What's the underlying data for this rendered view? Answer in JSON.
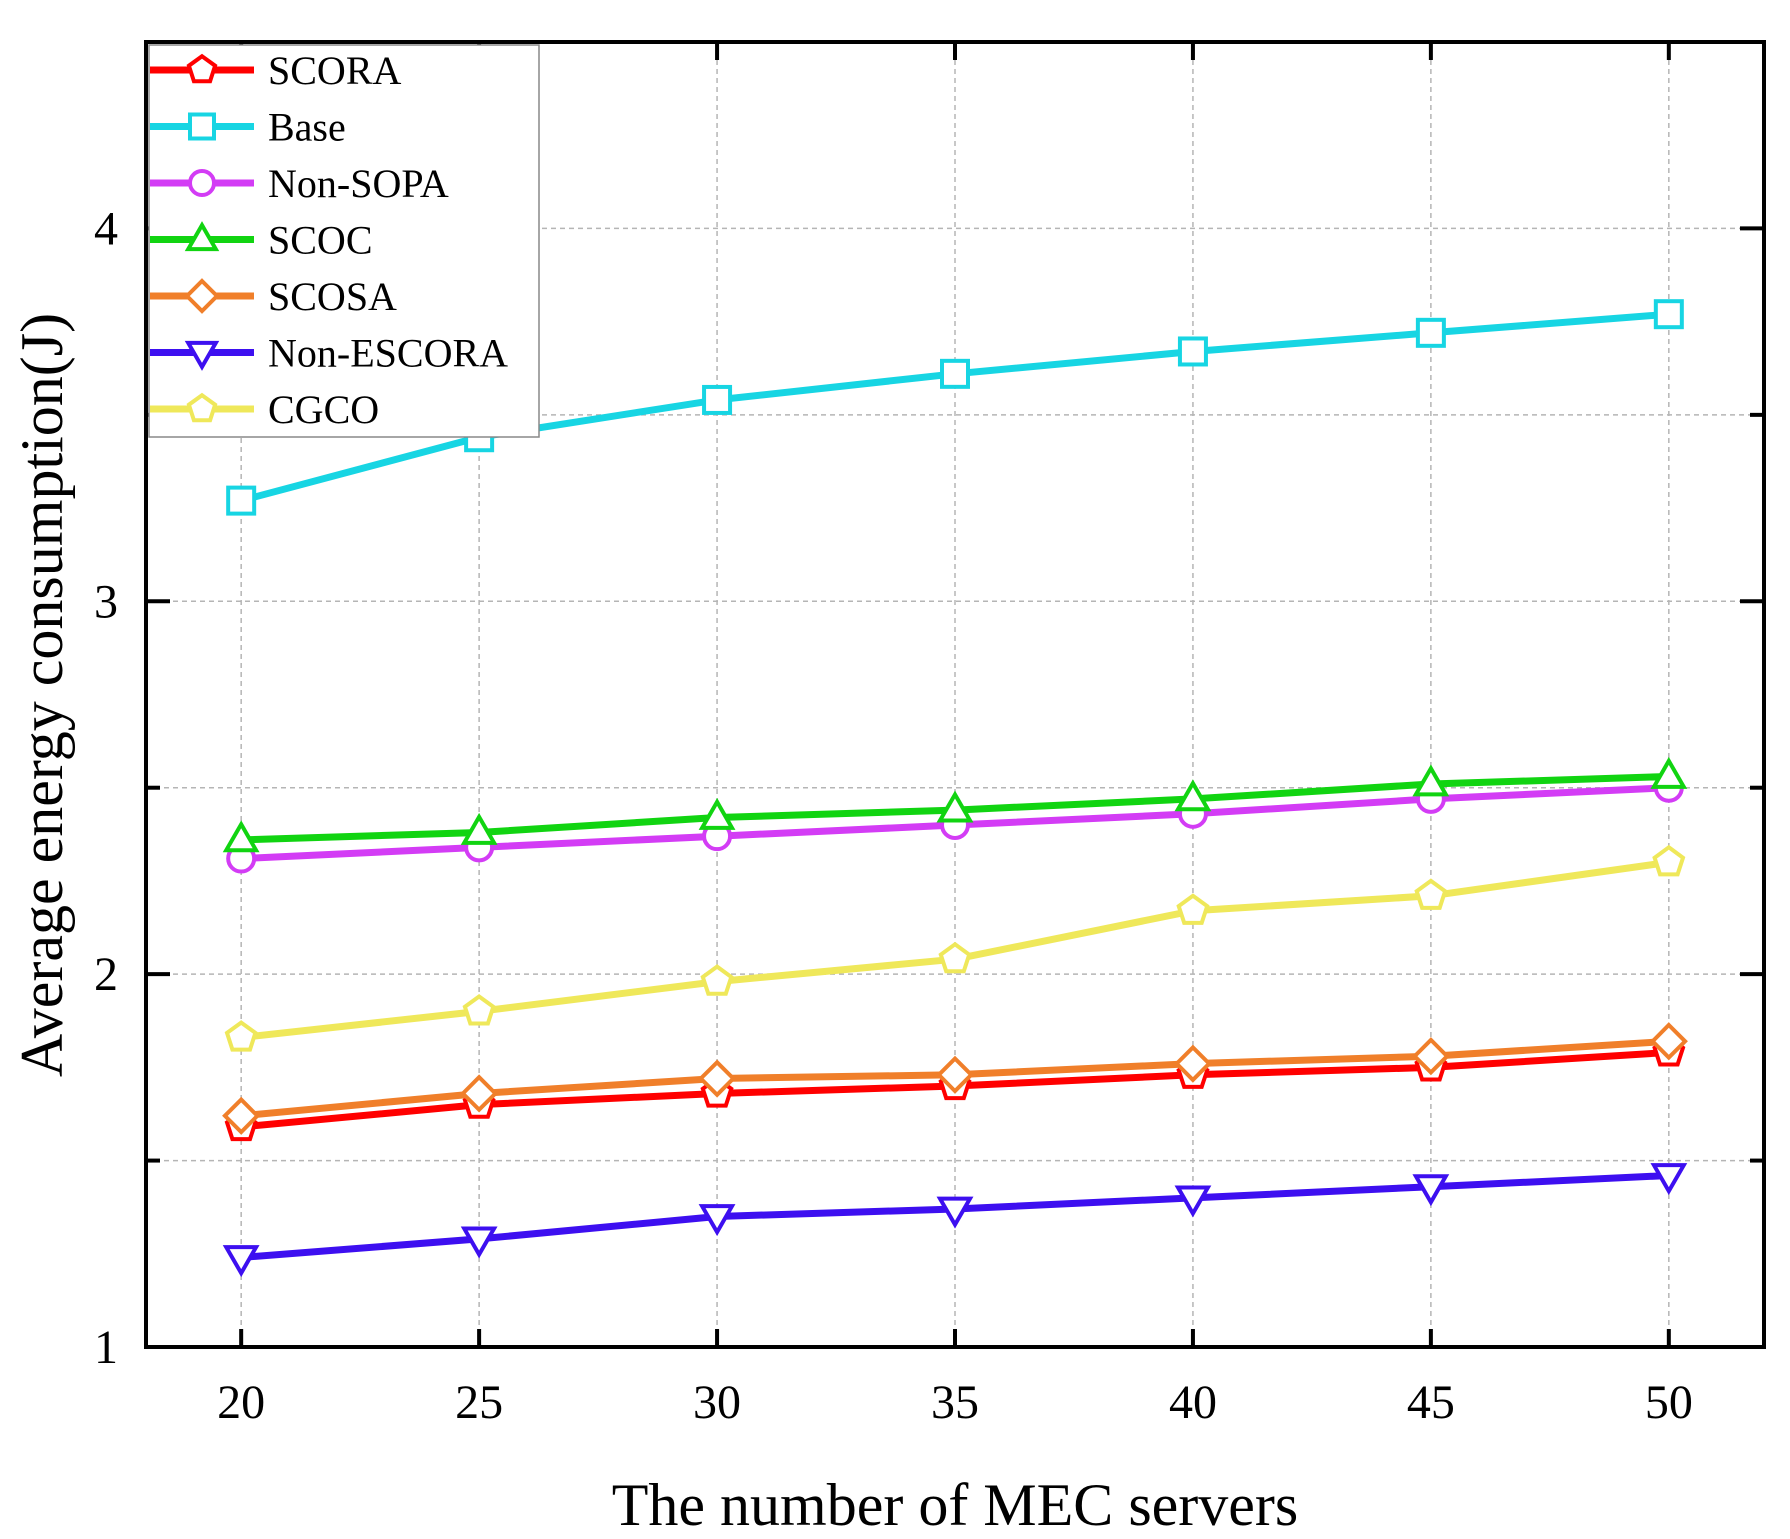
{
  "chart_data": {
    "type": "line",
    "title": "",
    "xlabel": "The number of MEC servers",
    "ylabel": "Average energy consumption(J)",
    "x": [
      20,
      25,
      30,
      35,
      40,
      45,
      50
    ],
    "xticks": [
      "20",
      "25",
      "30",
      "35",
      "40",
      "45",
      "50"
    ],
    "xlim": [
      18,
      52
    ],
    "ylim": [
      1,
      4.5
    ],
    "yticks": [
      1,
      2,
      3,
      4
    ],
    "yminor": [
      1.5,
      2.5,
      3.5
    ],
    "grid": true,
    "legend_position": "top-left",
    "series": [
      {
        "name": "SCORA",
        "color": "#ff0000",
        "marker": "pentagon",
        "values": [
          1.59,
          1.65,
          1.68,
          1.7,
          1.73,
          1.75,
          1.79
        ]
      },
      {
        "name": "Base",
        "color": "#17d5e3",
        "marker": "square",
        "values": [
          3.27,
          3.44,
          3.54,
          3.61,
          3.67,
          3.72,
          3.77
        ]
      },
      {
        "name": "Non-SOPA",
        "color": "#d33cf5",
        "marker": "circle",
        "values": [
          2.31,
          2.34,
          2.37,
          2.4,
          2.43,
          2.47,
          2.5
        ]
      },
      {
        "name": "SCOC",
        "color": "#11d411",
        "marker": "triangle-up",
        "values": [
          2.36,
          2.38,
          2.42,
          2.44,
          2.47,
          2.51,
          2.53
        ]
      },
      {
        "name": "SCOSA",
        "color": "#f07f2a",
        "marker": "diamond",
        "values": [
          1.62,
          1.68,
          1.72,
          1.73,
          1.76,
          1.78,
          1.82
        ]
      },
      {
        "name": "Non-ESCORA",
        "color": "#3d0ff0",
        "marker": "triangle-down",
        "values": [
          1.24,
          1.29,
          1.35,
          1.37,
          1.4,
          1.43,
          1.46
        ]
      },
      {
        "name": "CGCO",
        "color": "#efe85a",
        "marker": "pentagon",
        "values": [
          1.83,
          1.9,
          1.98,
          2.04,
          2.17,
          2.21,
          2.3
        ]
      }
    ]
  }
}
